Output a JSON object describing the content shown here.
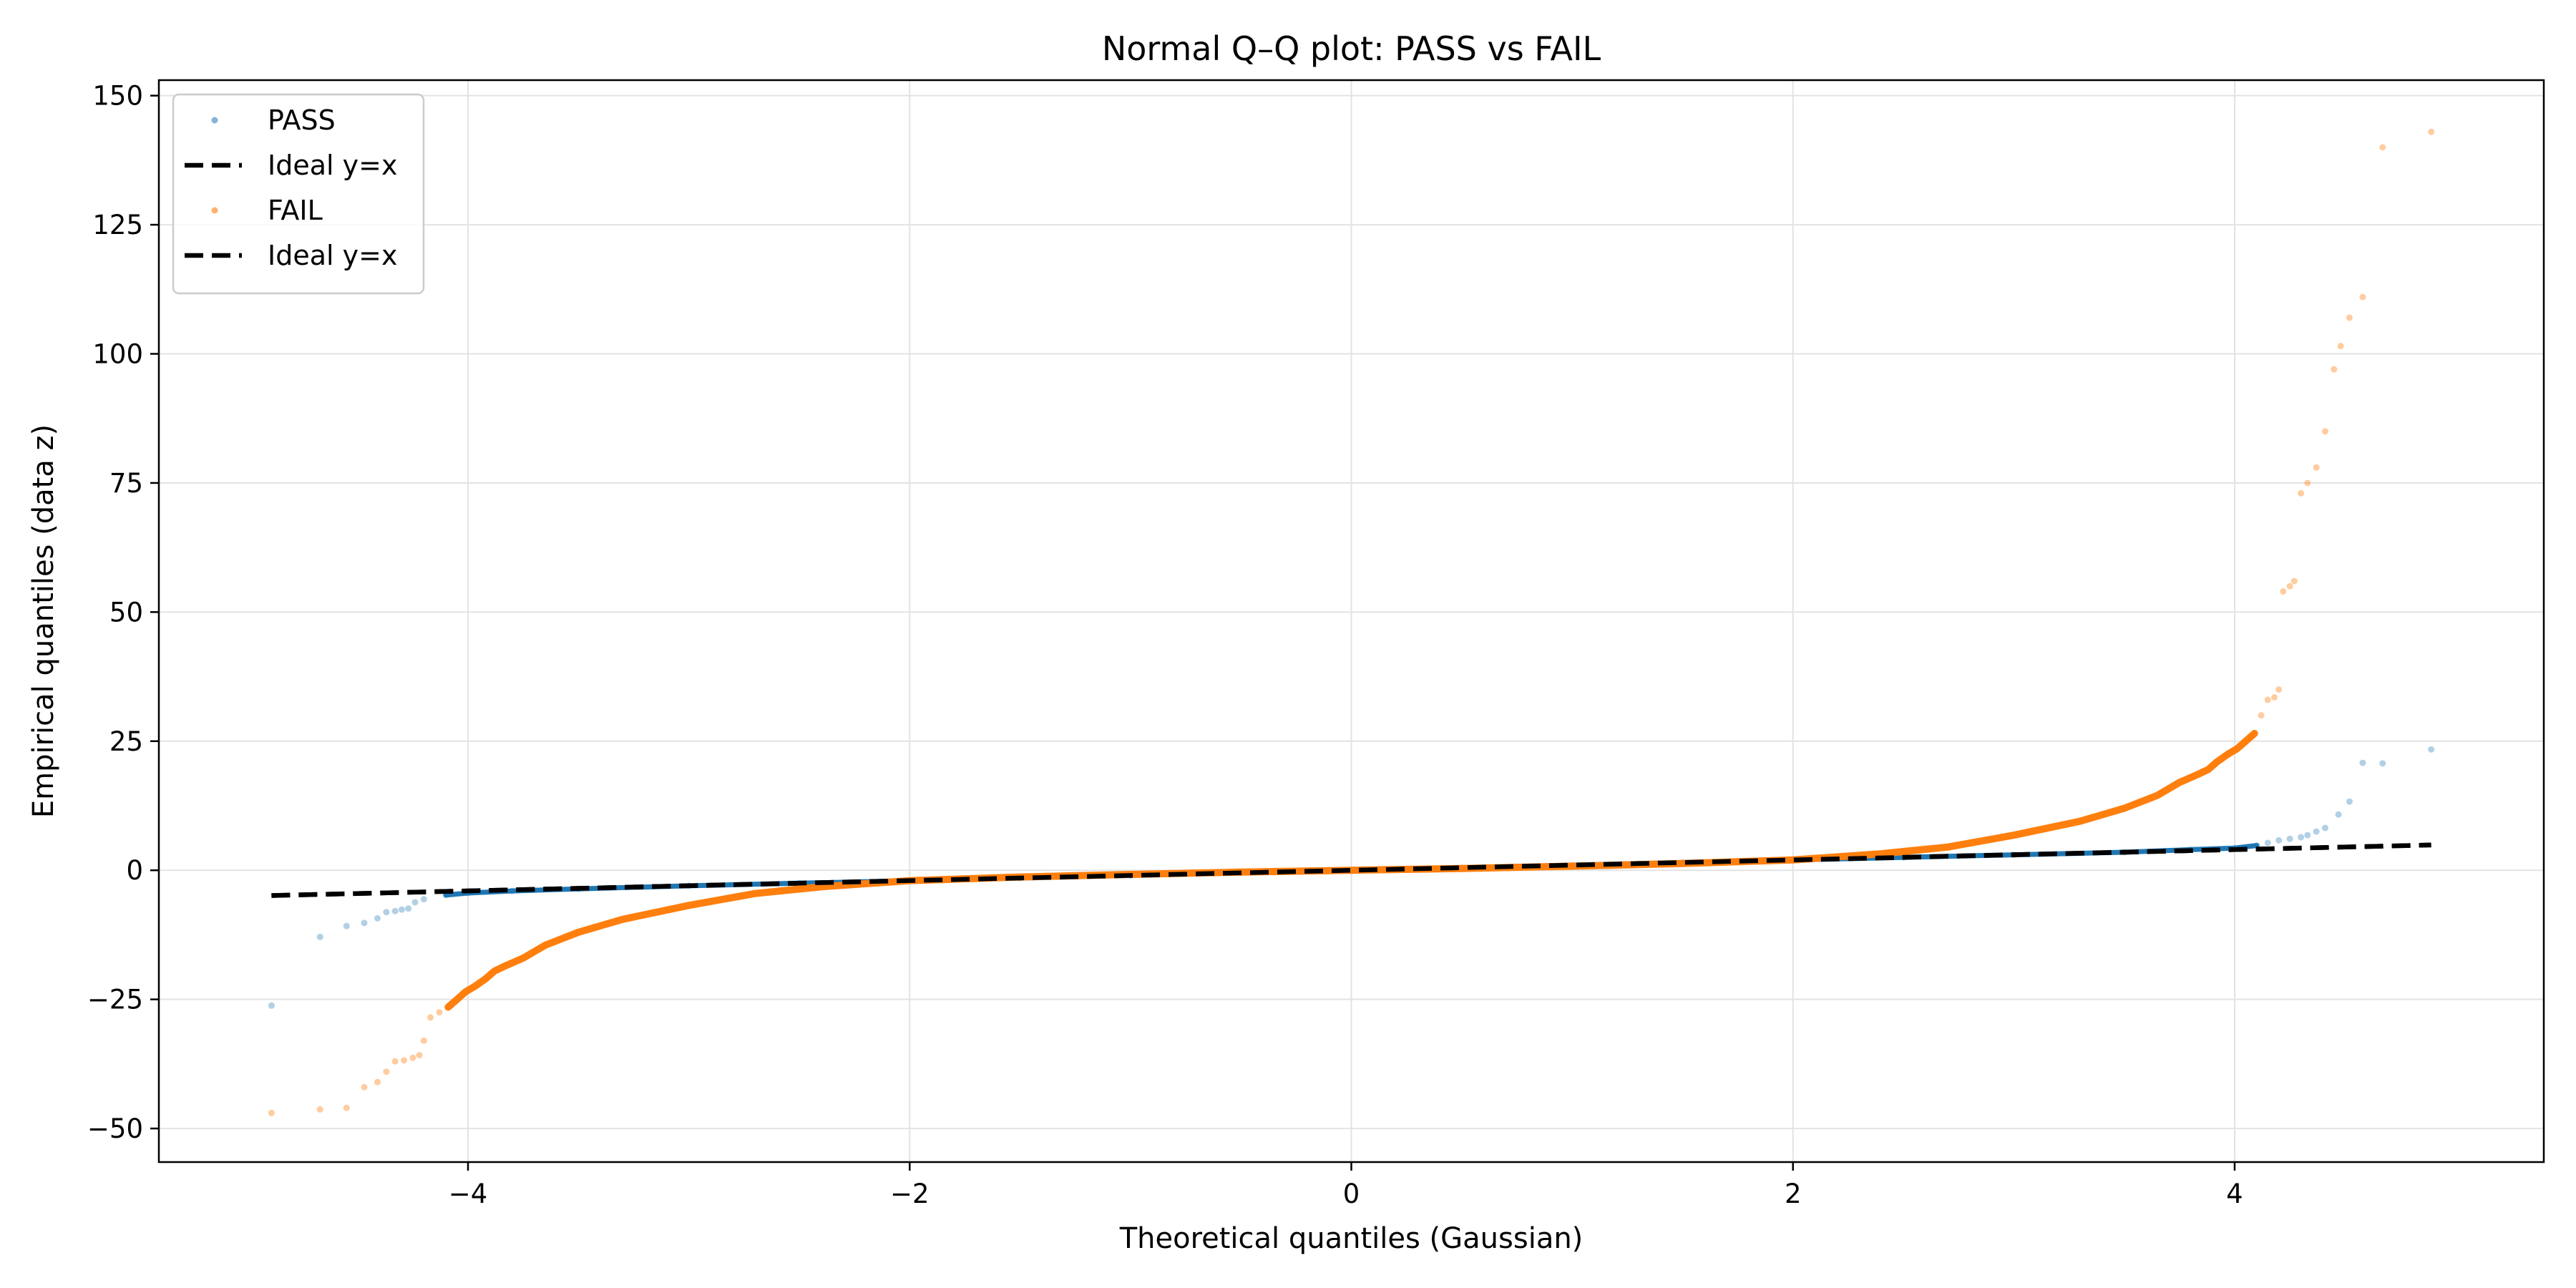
{
  "chart_data": {
    "type": "scatter",
    "title": "Normal Q–Q plot: PASS vs FAIL",
    "xlabel": "Theoretical quantiles (Gaussian)",
    "ylabel": "Empirical quantiles (data z)",
    "xlim": [
      -5.4,
      5.4
    ],
    "ylim": [
      -56.5,
      153
    ],
    "xticks": [
      -4,
      -2,
      0,
      2,
      4
    ],
    "xtick_labels": [
      "−4",
      "−2",
      "0",
      "2",
      "4"
    ],
    "yticks": [
      -50,
      -25,
      0,
      25,
      50,
      75,
      100,
      125,
      150
    ],
    "ytick_labels": [
      "−50",
      "−25",
      "0",
      "25",
      "50",
      "75",
      "100",
      "125",
      "150"
    ],
    "grid": true,
    "legend_position": "top-left",
    "legend": [
      "PASS",
      "Ideal y=x",
      "FAIL",
      "Ideal y=x"
    ],
    "series": [
      {
        "name": "PASS",
        "kind": "scatter",
        "color": "#1f77b4",
        "alpha": 0.35,
        "points": [
          [
            -4.89,
            -26.2
          ],
          [
            -4.67,
            -12.9
          ],
          [
            -4.55,
            -10.8
          ],
          [
            -4.47,
            -10.2
          ],
          [
            -4.41,
            -9.3
          ],
          [
            -4.37,
            -8.1
          ],
          [
            -4.33,
            -7.9
          ],
          [
            -4.3,
            -7.6
          ],
          [
            -4.27,
            -7.4
          ],
          [
            -4.24,
            -6.2
          ],
          [
            -4.2,
            -5.6
          ],
          [
            -4.1,
            -4.8
          ],
          [
            -4.0,
            -4.4
          ],
          [
            -3.8,
            -4.0
          ],
          [
            -3.5,
            -3.6
          ],
          [
            -3.0,
            -3.0
          ],
          [
            -2.5,
            -2.5
          ],
          [
            -2.0,
            -2.0
          ],
          [
            -1.5,
            -1.5
          ],
          [
            -1.0,
            -1.0
          ],
          [
            -0.5,
            -0.5
          ],
          [
            0.0,
            0.0
          ],
          [
            0.5,
            0.5
          ],
          [
            1.0,
            1.0
          ],
          [
            1.5,
            1.5
          ],
          [
            2.0,
            2.0
          ],
          [
            2.5,
            2.5
          ],
          [
            3.0,
            3.0
          ],
          [
            3.5,
            3.5
          ],
          [
            3.8,
            4.0
          ],
          [
            4.0,
            4.3
          ],
          [
            4.1,
            4.8
          ],
          [
            4.15,
            5.3
          ],
          [
            4.2,
            5.8
          ],
          [
            4.25,
            6.1
          ],
          [
            4.3,
            6.4
          ],
          [
            4.33,
            6.8
          ],
          [
            4.37,
            7.5
          ],
          [
            4.41,
            8.2
          ],
          [
            4.47,
            10.8
          ],
          [
            4.52,
            13.3
          ],
          [
            4.58,
            20.8
          ],
          [
            4.67,
            20.7
          ],
          [
            4.89,
            23.4
          ]
        ]
      },
      {
        "name": "Ideal y=x",
        "kind": "line",
        "color": "#000000",
        "points": [
          [
            -4.89,
            -4.89
          ],
          [
            4.89,
            4.89
          ]
        ]
      },
      {
        "name": "FAIL",
        "kind": "scatter",
        "color": "#ff7f0e",
        "alpha": 0.4,
        "points": [
          [
            -4.89,
            -47.0
          ],
          [
            -4.67,
            -46.3
          ],
          [
            -4.55,
            -46.0
          ],
          [
            -4.47,
            -42.0
          ],
          [
            -4.41,
            -41.0
          ],
          [
            -4.37,
            -39.0
          ],
          [
            -4.33,
            -37.0
          ],
          [
            -4.29,
            -36.8
          ],
          [
            -4.25,
            -36.3
          ],
          [
            -4.22,
            -35.8
          ],
          [
            -4.2,
            -33.0
          ],
          [
            -4.17,
            -28.5
          ],
          [
            -4.13,
            -27.5
          ],
          [
            -4.09,
            -26.5
          ],
          [
            -4.05,
            -25.0
          ],
          [
            -4.01,
            -23.5
          ],
          [
            -3.97,
            -22.5
          ],
          [
            -3.92,
            -21.0
          ],
          [
            -3.88,
            -19.5
          ],
          [
            -3.83,
            -18.5
          ],
          [
            -3.75,
            -17.0
          ],
          [
            -3.65,
            -14.5
          ],
          [
            -3.5,
            -12.0
          ],
          [
            -3.3,
            -9.5
          ],
          [
            -3.0,
            -6.8
          ],
          [
            -2.7,
            -4.5
          ],
          [
            -2.4,
            -3.2
          ],
          [
            -2.0,
            -2.0
          ],
          [
            -1.5,
            -1.3
          ],
          [
            -1.0,
            -0.8
          ],
          [
            -0.5,
            -0.35
          ],
          [
            0.0,
            0.0
          ],
          [
            0.5,
            0.35
          ],
          [
            1.0,
            0.8
          ],
          [
            1.5,
            1.3
          ],
          [
            2.0,
            2.0
          ],
          [
            2.4,
            3.2
          ],
          [
            2.7,
            4.5
          ],
          [
            3.0,
            6.8
          ],
          [
            3.3,
            9.5
          ],
          [
            3.5,
            12.0
          ],
          [
            3.65,
            14.5
          ],
          [
            3.75,
            17.0
          ],
          [
            3.83,
            18.5
          ],
          [
            3.88,
            19.5
          ],
          [
            3.92,
            21.0
          ],
          [
            3.97,
            22.5
          ],
          [
            4.01,
            23.5
          ],
          [
            4.05,
            25.0
          ],
          [
            4.09,
            26.5
          ],
          [
            4.12,
            30.0
          ],
          [
            4.15,
            33.0
          ],
          [
            4.18,
            33.5
          ],
          [
            4.2,
            35.0
          ],
          [
            4.22,
            54.0
          ],
          [
            4.25,
            55.0
          ],
          [
            4.27,
            56.0
          ],
          [
            4.3,
            73.0
          ],
          [
            4.33,
            75.0
          ],
          [
            4.37,
            78.0
          ],
          [
            4.41,
            85.0
          ],
          [
            4.45,
            97.0
          ],
          [
            4.48,
            101.5
          ],
          [
            4.52,
            107.0
          ],
          [
            4.58,
            111.0
          ],
          [
            4.67,
            140.0
          ],
          [
            4.89,
            143.0
          ]
        ]
      },
      {
        "name": "Ideal y=x",
        "kind": "line",
        "color": "#000000",
        "points": [
          [
            -4.89,
            -4.89
          ],
          [
            4.89,
            4.89
          ]
        ]
      }
    ]
  }
}
